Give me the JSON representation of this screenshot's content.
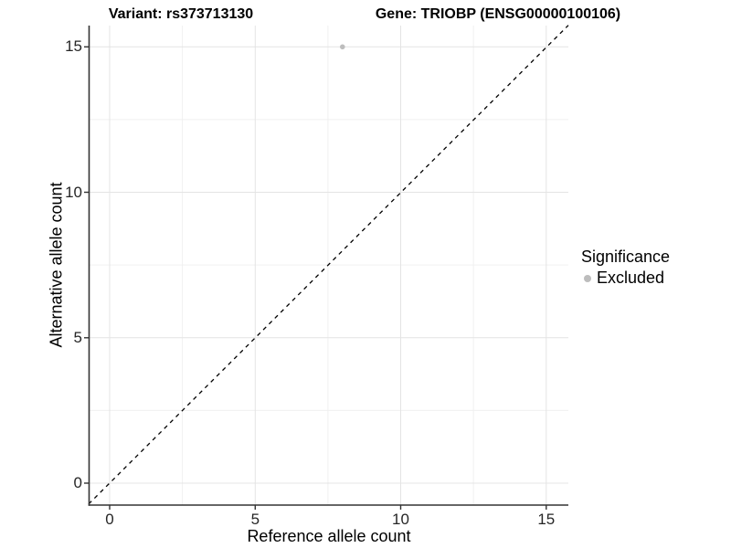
{
  "title": {
    "left": "Variant: rs373713130",
    "right": "Gene: TRIOBP (ENSG00000100106)"
  },
  "axes": {
    "x": {
      "label": "Reference allele count",
      "tick_labels": [
        "0",
        "5",
        "10",
        "15"
      ]
    },
    "y": {
      "label": "Alternative allele count",
      "tick_labels": [
        "0",
        "5",
        "10",
        "15"
      ]
    }
  },
  "legend": {
    "title": "Significance",
    "items": [
      {
        "label": "Excluded",
        "color": "#bdbdbd"
      }
    ]
  },
  "colors": {
    "point": "#bdbdbd",
    "grid_major": "#e4e4e4",
    "grid_minor": "#f0f0f0",
    "axis_line": "#333333",
    "identity_line": "#000000"
  },
  "chart_data": {
    "type": "scatter",
    "title": "Variant: rs373713130   Gene: TRIOBP (ENSG00000100106)",
    "xlabel": "Reference allele count",
    "ylabel": "Alternative allele count",
    "xlim": [
      -0.75,
      15.75
    ],
    "ylim": [
      -0.75,
      15.75
    ],
    "x_ticks": [
      0,
      5,
      10,
      15
    ],
    "y_ticks": [
      0,
      5,
      10,
      15
    ],
    "grid": "major every 5, minor every 2.5, light grey, on white panel",
    "legend_position": "right",
    "reference_line": {
      "style": "dashed",
      "color": "#000000",
      "equation": "y = x"
    },
    "series": [
      {
        "name": "Excluded",
        "color": "#bdbdbd",
        "marker": "circle",
        "points": [
          {
            "x": 8,
            "y": 15
          }
        ]
      }
    ]
  }
}
